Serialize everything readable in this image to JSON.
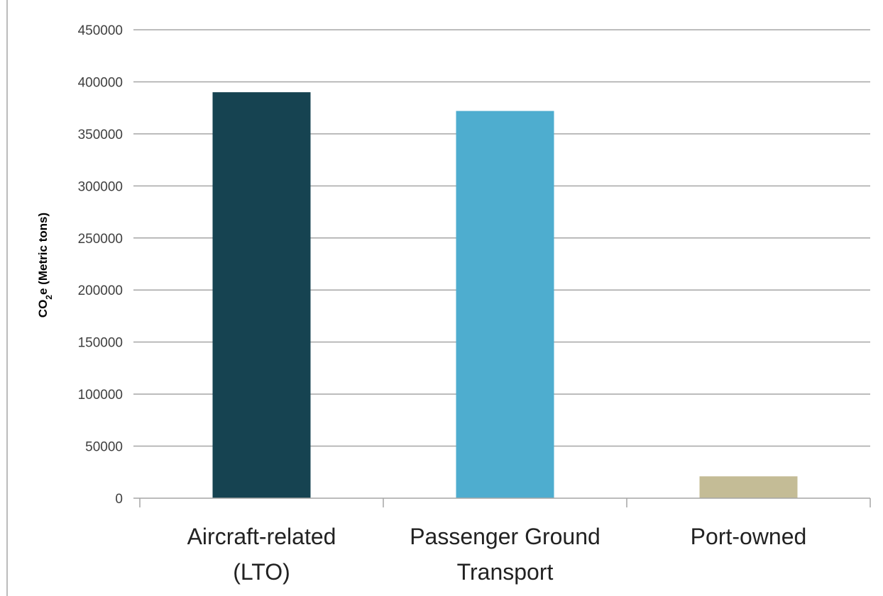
{
  "chart_data": {
    "type": "bar",
    "title": "",
    "xlabel": "",
    "ylabel": {
      "prefix": "CO",
      "subscript": "2",
      "suffix": "e (Metric tons)"
    },
    "ylim": [
      0,
      450000
    ],
    "yticks": [
      {
        "value": 0,
        "label": "0"
      },
      {
        "value": 50000,
        "label": "50000"
      },
      {
        "value": 100000,
        "label": "100000"
      },
      {
        "value": 150000,
        "label": "150000"
      },
      {
        "value": 200000,
        "label": "200000"
      },
      {
        "value": 250000,
        "label": "250000"
      },
      {
        "value": 300000,
        "label": "300000"
      },
      {
        "value": 350000,
        "label": "350000"
      },
      {
        "value": 400000,
        "label": "400000"
      },
      {
        "value": 450000,
        "label": "450000"
      }
    ],
    "categories": [
      {
        "lines": [
          "Aircraft-related",
          "(LTO)"
        ],
        "value": 390000,
        "color": "#164351"
      },
      {
        "lines": [
          "Passenger Ground",
          "Transport"
        ],
        "value": 372000,
        "color": "#4eadcf"
      },
      {
        "lines": [
          "Port-owned"
        ],
        "value": 21000,
        "color": "#c4bc96"
      }
    ],
    "grid": true,
    "legend": "none",
    "colors": {
      "gridline": "#a6a6a6",
      "axis": "#a6a6a6"
    }
  }
}
